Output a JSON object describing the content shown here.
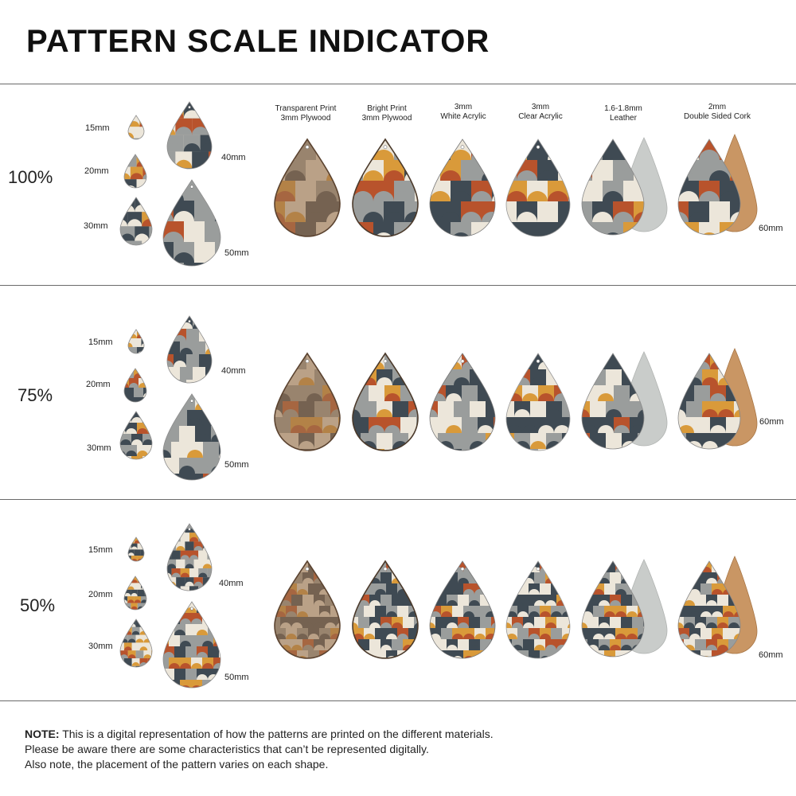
{
  "title": "PATTERN SCALE INDICATOR",
  "sizes": [
    "15mm",
    "20mm",
    "30mm",
    "40mm",
    "50mm",
    "60mm"
  ],
  "materials": [
    {
      "line1": "Transparent Print",
      "line2": "3mm Plywood"
    },
    {
      "line1": "Bright Print",
      "line2": "3mm Plywood"
    },
    {
      "line1": "3mm",
      "line2": "White Acrylic"
    },
    {
      "line1": "3mm",
      "line2": "Clear Acrylic"
    },
    {
      "line1": "1.6-1.8mm",
      "line2": "Leather"
    },
    {
      "line1": "2mm",
      "line2": "Double Sided Cork"
    }
  ],
  "scales": [
    "100%",
    "75%",
    "50%"
  ],
  "note": {
    "label": "NOTE:",
    "line1": "This is a digital representation of how the patterns are printed on the different materials.",
    "line2": "Please be aware there are some characteristics that can’t be represented digitally.",
    "line3": "Also note, the placement of the pattern varies on each shape."
  },
  "colors": {
    "slate": "#3f4a53",
    "rust": "#b8532c",
    "ochre": "#d99a3a",
    "cream": "#ece6da",
    "grey": "#9a9d9c",
    "wood": "#9a7350",
    "cork": "#c99664",
    "suede": "#c9ccca"
  }
}
